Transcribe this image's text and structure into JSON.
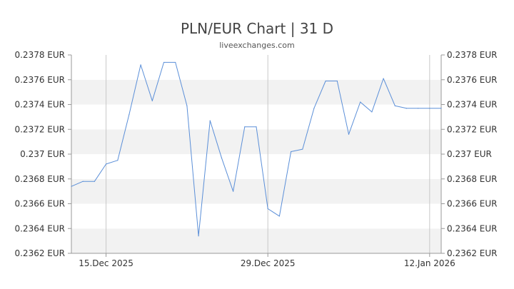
{
  "chart_data": {
    "type": "line",
    "title": "PLN/EUR Chart | 31 D",
    "subtitle": "liveexchanges.com",
    "xlabel": "",
    "ylabel": "",
    "ylim": [
      0.2362,
      0.2378
    ],
    "y_ticks": [
      0.2362,
      0.2364,
      0.2366,
      0.2368,
      0.237,
      0.2372,
      0.2374,
      0.2376,
      0.2378
    ],
    "y_tick_labels": [
      "0.2362 EUR",
      "0.2364 EUR",
      "0.2366 EUR",
      "0.2368 EUR",
      "0.237 EUR",
      "0.2372 EUR",
      "0.2374 EUR",
      "0.2376 EUR",
      "0.2378 EUR"
    ],
    "x_ticks": [
      "15.Dec 2025",
      "29.Dec 2025",
      "12.Jan 2026"
    ],
    "x_range": [
      "2025-12-12",
      "2026-01-13"
    ],
    "grid": "horizontal bands",
    "band_colors": [
      "#ffffff",
      "#f2f2f2"
    ],
    "line_color": "#5b8fd8",
    "series": [
      {
        "x": [
          "2025-12-12",
          "2025-12-13",
          "2025-12-14",
          "2025-12-15",
          "2025-12-16",
          "2025-12-17",
          "2025-12-18",
          "2025-12-19",
          "2025-12-20",
          "2025-12-21",
          "2025-12-22",
          "2025-12-23",
          "2025-12-24",
          "2025-12-25",
          "2025-12-26",
          "2025-12-27",
          "2025-12-28",
          "2025-12-29",
          "2025-12-30",
          "2025-12-31",
          "2026-01-01",
          "2026-01-02",
          "2026-01-03",
          "2026-01-04",
          "2026-01-05",
          "2026-01-06",
          "2026-01-07",
          "2026-01-08",
          "2026-01-09",
          "2026-01-10",
          "2026-01-11",
          "2026-01-12",
          "2026-01-13"
        ],
        "values": [
          0.23674,
          0.23678,
          0.23678,
          0.23692,
          0.23695,
          0.23732,
          0.23772,
          0.23743,
          0.23774,
          0.23774,
          0.23739,
          0.23634,
          0.23727,
          0.23697,
          0.2367,
          0.23722,
          0.23722,
          0.23656,
          0.2365,
          0.23702,
          0.23704,
          0.23737,
          0.23759,
          0.23759,
          0.23716,
          0.23742,
          0.23734,
          0.23761,
          0.23739,
          0.23737,
          0.23737,
          0.23737,
          0.23737
        ]
      }
    ]
  }
}
